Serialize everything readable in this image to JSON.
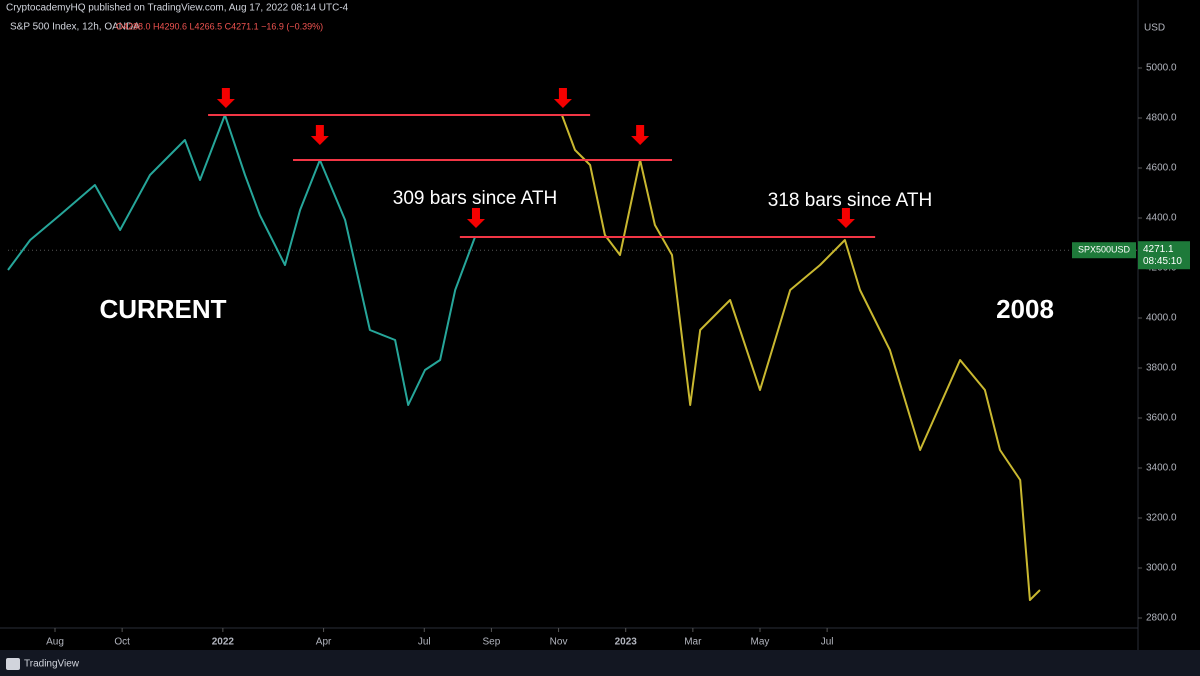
{
  "header": {
    "publisher": "CryptocademyHQ published on TradingView.com, Aug 17, 2022 08:14 UTC-4",
    "symbol": "S&P 500 Index, 12h, OANDA",
    "ohlc": "O4288.0 H4290.6 L4266.5 C4271.1 −16.9 (−0.39%)"
  },
  "chart_data": {
    "type": "line",
    "axis_unit": "USD",
    "xlim": [
      -1.4,
      32.26
    ],
    "xticks": [
      {
        "value": 0,
        "label": "Aug"
      },
      {
        "value": 2,
        "label": "Oct"
      },
      {
        "value": 5,
        "label": "2022"
      },
      {
        "value": 8,
        "label": "Apr"
      },
      {
        "value": 11,
        "label": "Jul"
      },
      {
        "value": 13,
        "label": "Sep"
      },
      {
        "value": 15,
        "label": "Nov"
      },
      {
        "value": 17,
        "label": "2023"
      },
      {
        "value": 19,
        "label": "Mar"
      },
      {
        "value": 21,
        "label": "May"
      },
      {
        "value": 23,
        "label": "Jul"
      }
    ],
    "ylim": [
      2760,
      5200
    ],
    "yticks": [
      {
        "value": 2800,
        "label": "2800.0"
      },
      {
        "value": 3000,
        "label": "3000.0"
      },
      {
        "value": 3200,
        "label": "3200.0"
      },
      {
        "value": 3400,
        "label": "3400.0"
      },
      {
        "value": 3600,
        "label": "3600.0"
      },
      {
        "value": 3800,
        "label": "3800.0"
      },
      {
        "value": 4000,
        "label": "4000.0"
      },
      {
        "value": 4200,
        "label": "4200.0"
      },
      {
        "value": 4400,
        "label": "4400.0"
      },
      {
        "value": 4600,
        "label": "4600.0"
      },
      {
        "value": 4800,
        "label": "4800.0"
      },
      {
        "value": 5000,
        "label": "5000.0"
      }
    ],
    "series": [
      {
        "name": "CURRENT",
        "color": "#26a69a",
        "x": [
          -1.4,
          -0.74,
          0.15,
          1.19,
          1.94,
          2.83,
          3.87,
          4.32,
          5.06,
          5.66,
          6.1,
          6.85,
          7.3,
          7.89,
          8.64,
          9.38,
          10.13,
          10.52,
          11.02,
          11.47,
          11.92,
          12.51
        ],
        "values": [
          4192,
          4312,
          4412,
          4532,
          4352,
          4572,
          4712,
          4552,
          4812,
          4572,
          4412,
          4212,
          4432,
          4632,
          4392,
          3952,
          3912,
          3652,
          3792,
          3832,
          4112,
          4324
        ]
      },
      {
        "name": "2008",
        "color": "#c9b830",
        "x": [
          15.1,
          15.49,
          15.94,
          16.38,
          16.83,
          17.43,
          17.87,
          18.38,
          18.92,
          19.22,
          20.11,
          21.0,
          21.9,
          22.79,
          23.53,
          23.98,
          24.87,
          25.77,
          26.96,
          27.7,
          28.15,
          28.75,
          29.04,
          29.34
        ],
        "values": [
          4812,
          4672,
          4612,
          4332,
          4252,
          4632,
          4372,
          4252,
          3652,
          3952,
          4072,
          3712,
          4112,
          4212,
          4312,
          4112,
          3872,
          3472,
          3832,
          3712,
          3472,
          3352,
          2872,
          2912
        ]
      }
    ],
    "hlines": [
      {
        "value": 4812,
        "x": [
          4.56,
          15.94
        ]
      },
      {
        "value": 4632,
        "x": [
          7.09,
          18.38
        ]
      },
      {
        "value": 4324,
        "x": [
          12.06,
          24.43
        ]
      }
    ],
    "markers": [
      {
        "x": 5.09,
        "value": 4840
      },
      {
        "x": 7.89,
        "value": 4692
      },
      {
        "x": 15.13,
        "value": 4840
      },
      {
        "x": 17.43,
        "value": 4692
      },
      {
        "x": 12.54,
        "value": 4360
      },
      {
        "x": 23.56,
        "value": 4360
      }
    ],
    "annotations": [
      "309 bars since ATH",
      "318 bars since ATH"
    ],
    "last_price": {
      "symbol": "SPX500USD",
      "value": 4271.1,
      "label": "4271.1",
      "countdown": "08:45:10"
    }
  },
  "footer": {
    "brand": "TradingView"
  }
}
